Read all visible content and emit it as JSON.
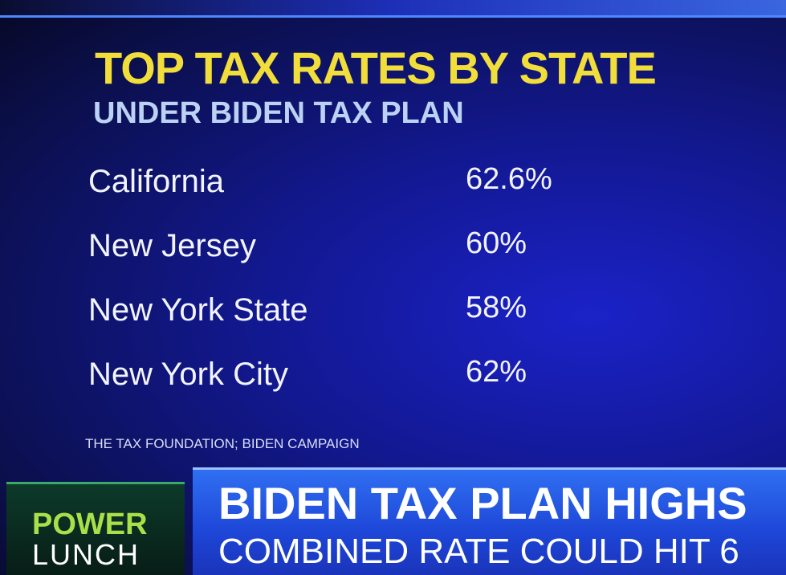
{
  "header": {
    "title": "TOP TAX RATES BY STATE",
    "subtitle": "UNDER BIDEN TAX PLAN"
  },
  "table": {
    "rows": [
      [
        "California",
        "62.6%"
      ],
      [
        "New Jersey",
        "60%"
      ],
      [
        "New York State",
        "58%"
      ],
      [
        "New York City",
        "62%"
      ]
    ]
  },
  "source": "THE TAX FOUNDATION; BIDEN CAMPAIGN",
  "banner": {
    "show_top": "POWER",
    "show_bottom": "LUNCH",
    "headline": "BIDEN TAX PLAN HIGHS",
    "subheadline": "COMBINED RATE COULD HIT 6"
  }
}
